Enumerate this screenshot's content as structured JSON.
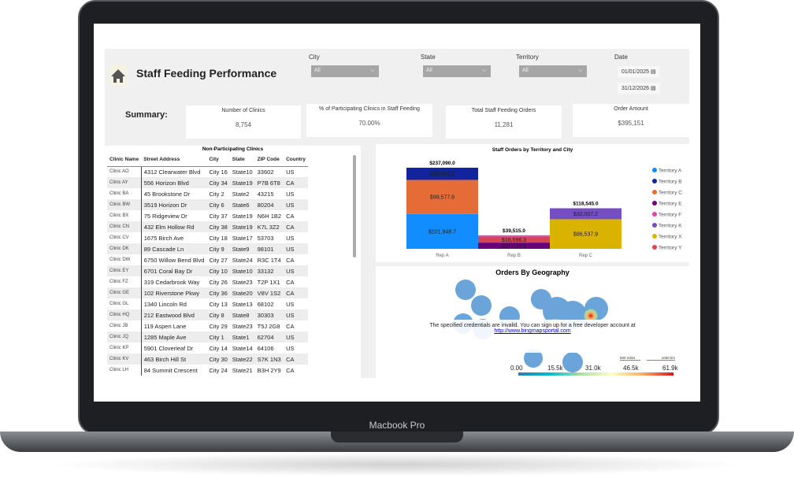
{
  "device": {
    "label": "Macbook Pro"
  },
  "header": {
    "title": "Staff Feeding Performance",
    "home_icon": "home-icon"
  },
  "filters": {
    "city": {
      "label": "City",
      "value": "All"
    },
    "state": {
      "label": "State",
      "value": "All"
    },
    "territory": {
      "label": "Territory",
      "value": "All"
    },
    "date": {
      "label": "Date",
      "start": "01/01/2025",
      "end": "31/12/2026"
    }
  },
  "summary": {
    "label": "Summary:",
    "cards": [
      {
        "label": "Number of Clinics",
        "value": "8,754"
      },
      {
        "label": "% of Participating Clinics in Staff Feeding",
        "value": "70.00%"
      },
      {
        "label": "Total Staff Feeding Orders",
        "value": "11,281"
      },
      {
        "label": "Order Amount",
        "value": "$395,151"
      }
    ]
  },
  "table": {
    "title": "Non-Participating Clinics",
    "columns": [
      "Clinic Name",
      "Street Address",
      "City",
      "State",
      "ZIP Code",
      "Country"
    ],
    "rows": [
      [
        "Clinic AO",
        "4312 Clearwater Blvd",
        "City 16",
        "State10",
        "33602",
        "US"
      ],
      [
        "Clinic AY",
        "556 Horizon Blvd",
        "City 34",
        "State19",
        "P7B 6T8",
        "CA"
      ],
      [
        "Clinic BA",
        "45 Brookstone Dr",
        "City 2",
        "State2",
        "43215",
        "US"
      ],
      [
        "Clinic BW",
        "3519 Horizon Dr",
        "City 6",
        "State6",
        "80204",
        "US"
      ],
      [
        "Clinic BX",
        "75 Ridgeview Dr",
        "City 37",
        "State19",
        "N6H 1B2",
        "CA"
      ],
      [
        "Clinic CN",
        "432 Elm Hollow Rd",
        "City 38",
        "State19",
        "K7L 3Z2",
        "CA"
      ],
      [
        "Clinic CV",
        "1675 Birch Ave",
        "City 18",
        "State17",
        "53703",
        "US"
      ],
      [
        "Clinic DK",
        "89 Cascade Ln",
        "City 9",
        "State9",
        "98101",
        "US"
      ],
      [
        "Clinic DW",
        "6750 Willow Bend Blvd",
        "City 27",
        "State24",
        "R3C 1T4",
        "CA"
      ],
      [
        "Clinic EY",
        "6701 Coral Bay Dr",
        "City 10",
        "State10",
        "33132",
        "US"
      ],
      [
        "Clinic FZ",
        "319 Cedarbrook Way",
        "City 26",
        "State23",
        "T2P 1X1",
        "CA"
      ],
      [
        "Clinic GE",
        "102 Riverstone Pkwy",
        "City 36",
        "State20",
        "V8V 1S2",
        "CA"
      ],
      [
        "Clinic GL",
        "1340 Lincoln Rd",
        "City 13",
        "State13",
        "68102",
        "US"
      ],
      [
        "Clinic HQ",
        "212 Eastwood Blvd",
        "City 8",
        "State8",
        "30303",
        "US"
      ],
      [
        "Clinic JB",
        "119 Aspen Lane",
        "City 29",
        "State23",
        "T5J 2G8",
        "CA"
      ],
      [
        "Clinic JQ",
        "1285 Maple Ave",
        "City 1",
        "State1",
        "62704",
        "US"
      ],
      [
        "Clinic KP",
        "5901 Cloverleaf Dr",
        "City 14",
        "State14",
        "64106",
        "US"
      ],
      [
        "Clinic KV",
        "463 Birch Hill St",
        "City 30",
        "State22",
        "S7K 1N3",
        "CA"
      ],
      [
        "Clinic LH",
        "84 Summit Crescent",
        "City 24",
        "State21",
        "B3H 2Y9",
        "CA"
      ]
    ]
  },
  "chart_data": {
    "type": "bar",
    "stacked": true,
    "title": "Staff Orders by Territory and City",
    "categories": [
      "Rep A",
      "Rep B",
      "Rep C"
    ],
    "totals": [
      "$237,090.0",
      "$39,515.0",
      "$118,545.0"
    ],
    "legend_position": "right",
    "series": [
      {
        "name": "Territory A",
        "color": "#118dff",
        "values": [
          101948.7,
          0,
          0
        ],
        "labels": [
          "$101,948.7",
          "",
          ""
        ]
      },
      {
        "name": "Territory B",
        "color": "#12239e",
        "values": [
          35563.5,
          0,
          0
        ],
        "labels": [
          "$35,563.5",
          "",
          ""
        ]
      },
      {
        "name": "Territory C",
        "color": "#e66c37",
        "values": [
          99577.8,
          0,
          0
        ],
        "labels": [
          "$99,577.8",
          "",
          ""
        ]
      },
      {
        "name": "Territory E",
        "color": "#6b007b",
        "values": [
          0,
          18176.9,
          0
        ],
        "labels": [
          "",
          "$18,176.9",
          ""
        ]
      },
      {
        "name": "Territory F",
        "color": "#e044a7",
        "values": [
          0,
          4741.8,
          0
        ],
        "labels": [
          "",
          "",
          ""
        ]
      },
      {
        "name": "Territory K",
        "color": "#744ec2",
        "values": [
          0,
          0,
          32007.2
        ],
        "labels": [
          "",
          "",
          "$32,007.2"
        ]
      },
      {
        "name": "Territory X",
        "color": "#d9b300",
        "values": [
          0,
          0,
          86537.9
        ],
        "labels": [
          "",
          "",
          "$86,537.9"
        ]
      },
      {
        "name": "Territory Y",
        "color": "#d64550",
        "values": [
          0,
          16596.3,
          0
        ],
        "labels": [
          "",
          "$16,596.3",
          ""
        ]
      }
    ],
    "stack_order": [
      [
        "Territory A",
        "Territory C",
        "Territory B"
      ],
      [
        "Territory E",
        "Territory Y",
        "Territory F"
      ],
      [
        "Territory X",
        "Territory K"
      ]
    ]
  },
  "map": {
    "title": "Orders By Geography",
    "error": "The specified credentials are invalid. You can sign up for a free developer account at",
    "link": "http://www.bingmapsportal.com",
    "scale_miles": "500 miles",
    "scale_km": "1000 km",
    "color_scale": [
      "0.00",
      "15.5k",
      "31.0k",
      "46.5k",
      "61.9k"
    ]
  }
}
